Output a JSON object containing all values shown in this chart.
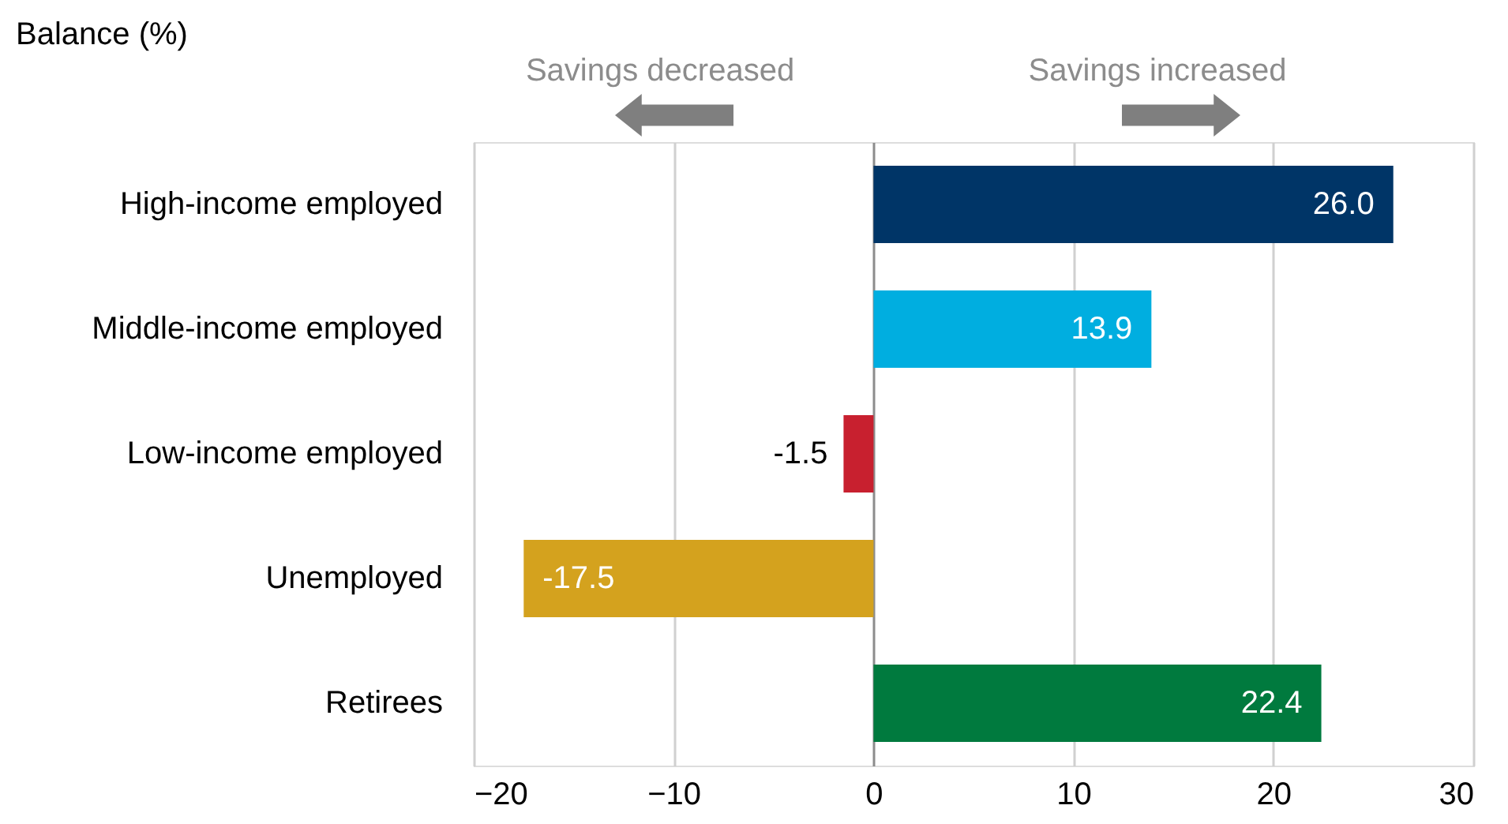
{
  "chart_data": {
    "type": "bar",
    "orientation": "horizontal",
    "title": "Balance (%)",
    "categories": [
      "High-income employed",
      "Middle-income employed",
      "Low-income employed",
      "Unemployed",
      "Retirees"
    ],
    "values": [
      26.0,
      13.9,
      -1.5,
      -17.5,
      22.4
    ],
    "colors": [
      "#003567",
      "#00aee0",
      "#c8202f",
      "#d4a21e",
      "#007a3e"
    ],
    "value_labels": [
      "26.0",
      "13.9",
      "-1.5",
      "-17.5",
      "22.4"
    ],
    "xlim": [
      -20,
      30
    ],
    "xticks": [
      -20,
      -10,
      0,
      10,
      20,
      30
    ],
    "grid": "x",
    "legend": false,
    "annotations": [
      "Savings decreased",
      "Savings increased"
    ]
  }
}
